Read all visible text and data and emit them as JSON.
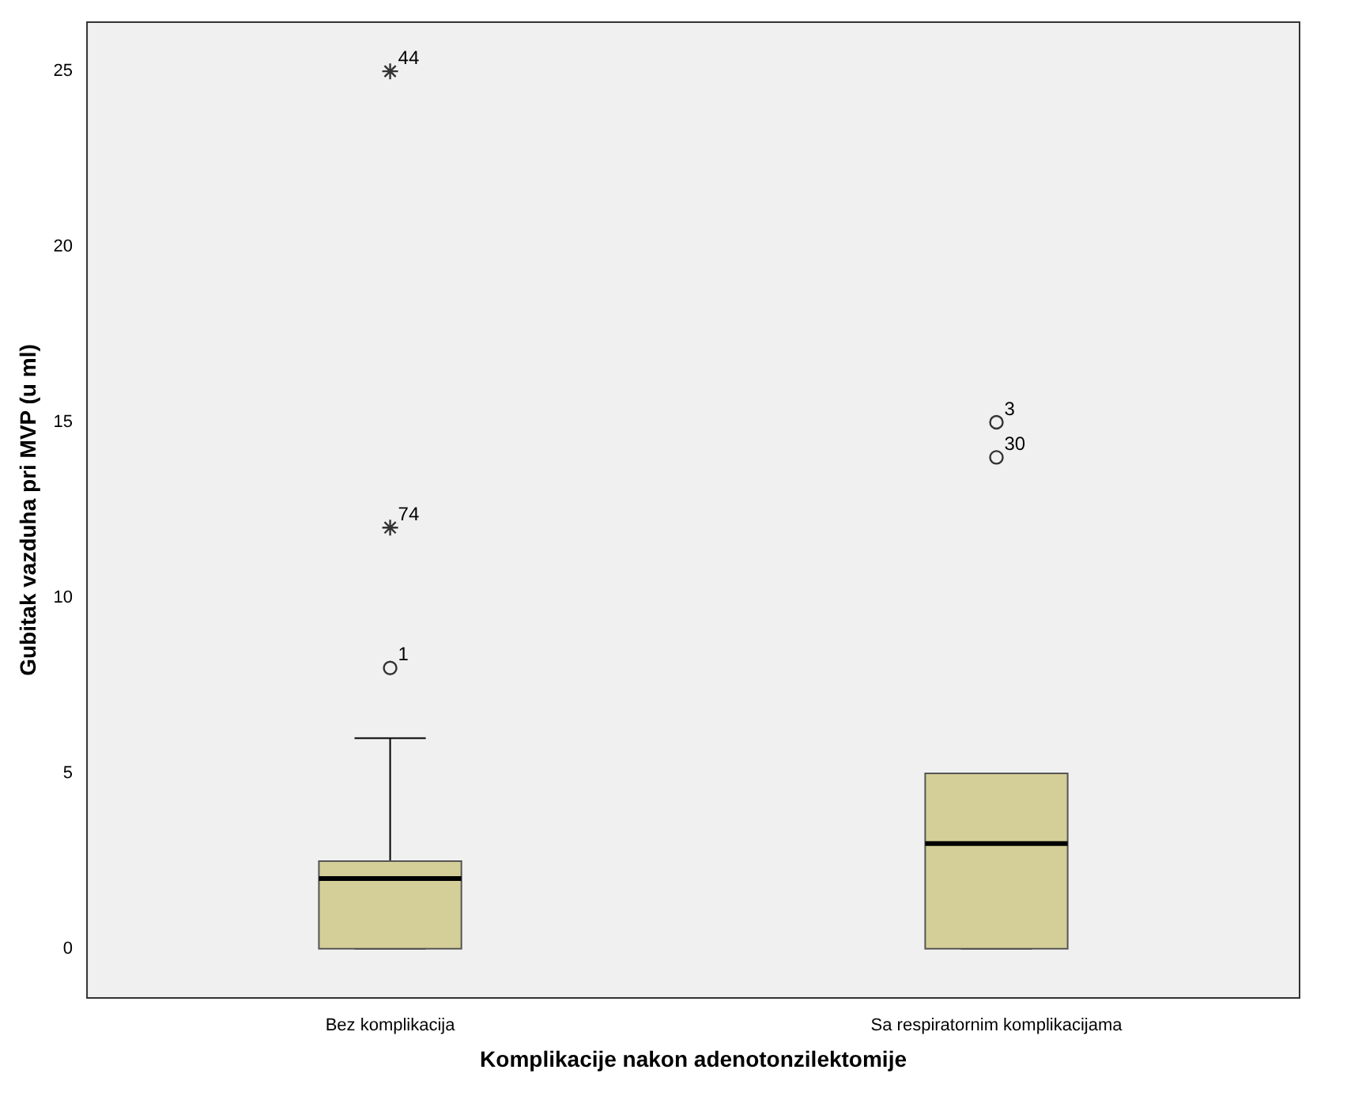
{
  "chart_data": {
    "type": "box",
    "xlabel": "Komplikacije nakon adenotonzilektomije",
    "ylabel": "Gubitak vazduha pri MVP (u ml)",
    "categories": [
      "Bez komplikacija",
      "Sa respiratornim komplikacijama"
    ],
    "color": "#d4cf98",
    "boxes": [
      {
        "low": 0,
        "q1": 0,
        "median": 2,
        "q3": 2.5,
        "high": 6
      },
      {
        "low": 0,
        "q1": 0,
        "median": 3,
        "q3": 5,
        "high": 5
      }
    ],
    "series": [
      {
        "type": "scatter",
        "marker": "cross",
        "color": "#333333",
        "x": [
          "Bez komplikacija",
          "Bez komplikacija"
        ],
        "values": [
          25,
          12
        ]
      },
      {
        "type": "scatter",
        "marker": "circle",
        "color": "#333333",
        "x": [
          "Bez komplikacija",
          "Sa respiratornim komplikacijama",
          "Sa respiratornim komplikacijama"
        ],
        "values": [
          8,
          15,
          14
        ]
      }
    ],
    "ylim": [
      -1.4,
      26.4
    ],
    "yticks": [
      0,
      5,
      10,
      15,
      20,
      25
    ],
    "annotations": [
      {
        "text": "44",
        "x": "Bez komplikacija",
        "y": 25
      },
      {
        "text": "74",
        "x": "Bez komplikacija",
        "y": 12
      },
      {
        "text": "1",
        "x": "Bez komplikacija",
        "y": 8
      },
      {
        "text": "3",
        "x": "Sa respiratornim komplikacijama",
        "y": 15
      },
      {
        "text": "30",
        "x": "Sa respiratornim komplikacijama",
        "y": 14
      }
    ]
  }
}
